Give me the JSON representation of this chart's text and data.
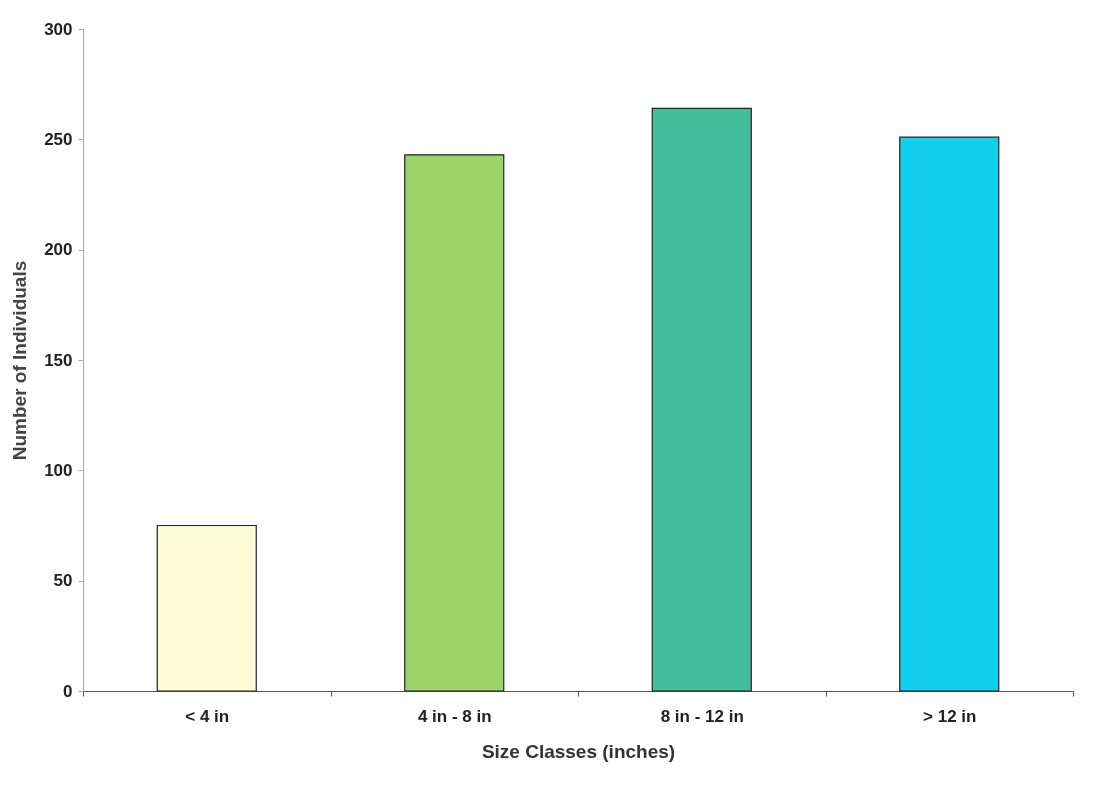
{
  "chart_data": {
    "type": "bar",
    "xlabel": "Size Classes (inches)",
    "ylabel": "Number of Individuals",
    "categories": [
      "< 4 in",
      "4 in - 8 in",
      "8 in - 12 in",
      "> 12 in"
    ],
    "values": [
      75,
      243,
      264,
      251
    ],
    "colors": [
      "#fbfcd4",
      "#9dd46a",
      "#45bd9a",
      "#12cfed"
    ],
    "ylim": [
      0,
      300
    ],
    "yticks": [
      0,
      50,
      100,
      150,
      200,
      250,
      300
    ],
    "grid": false
  }
}
